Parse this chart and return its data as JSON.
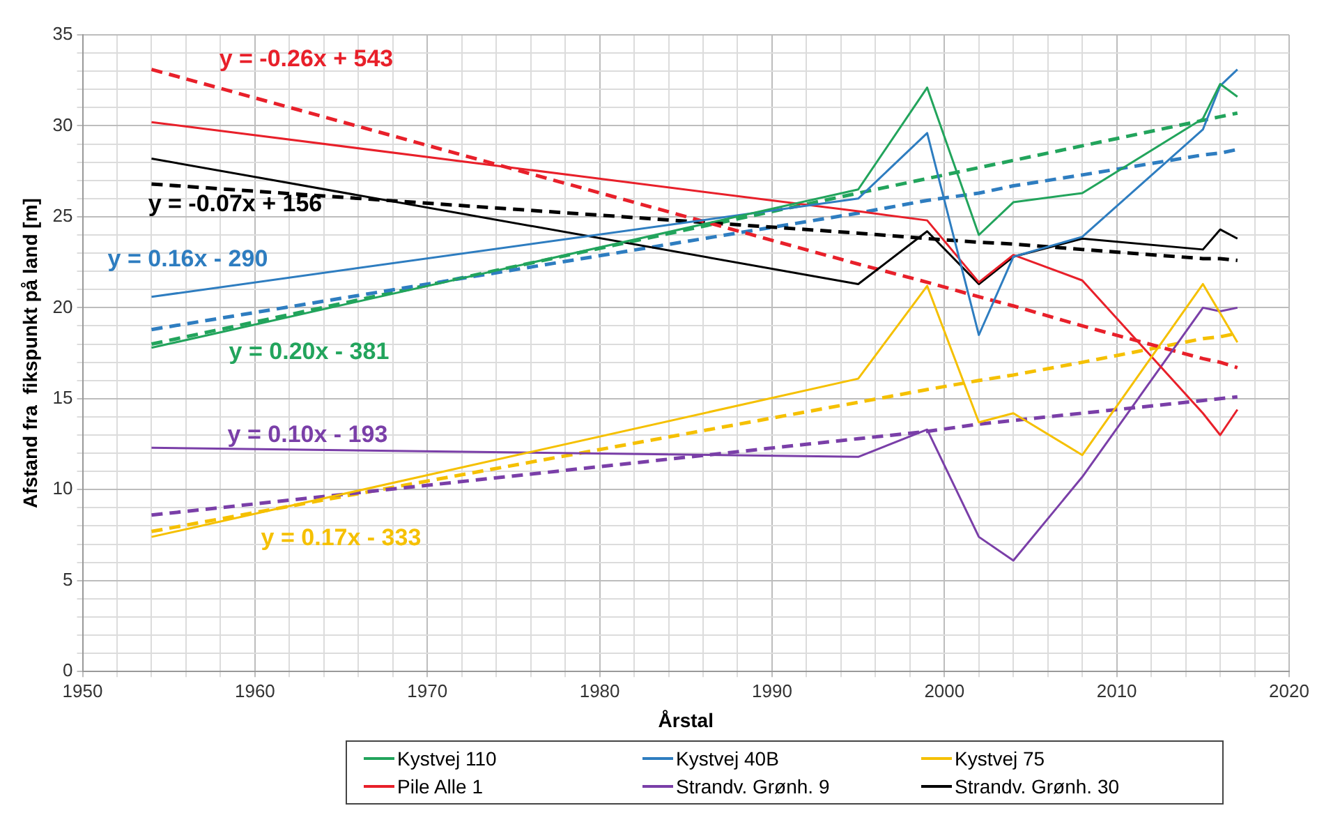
{
  "chart_data": {
    "type": "line",
    "xlabel": "Årstal",
    "ylabel": "Afstand fra  fikspunkt på land [m]",
    "x": [
      1954,
      1995,
      1999,
      2002,
      2004,
      2008,
      2015,
      2016,
      2017
    ],
    "series": [
      {
        "name": "Kystvej 110",
        "color": "#22a45c",
        "values": [
          17.8,
          26.5,
          32.1,
          24.0,
          25.8,
          26.3,
          30.4,
          32.3,
          31.6
        ]
      },
      {
        "name": "Kystvej 40B",
        "color": "#2e7dc0",
        "values": [
          20.6,
          26.0,
          29.6,
          18.5,
          22.8,
          23.9,
          29.8,
          32.2,
          33.1
        ]
      },
      {
        "name": "Kystvej 75",
        "color": "#f5c000",
        "values": [
          7.4,
          16.1,
          21.2,
          13.7,
          14.2,
          11.9,
          21.3,
          19.7,
          18.1
        ]
      },
      {
        "name": "Pile Alle 1",
        "color": "#e8202a",
        "values": [
          30.2,
          25.3,
          24.8,
          21.4,
          22.9,
          21.5,
          14.2,
          13.0,
          14.4
        ]
      },
      {
        "name": "Strandv. Grønh. 9",
        "color": "#7a3fa8",
        "values": [
          12.3,
          11.8,
          13.3,
          7.4,
          6.1,
          10.7,
          20.0,
          19.8,
          20.0
        ]
      },
      {
        "name": "Strandv. Grønh. 30",
        "color": "#000000",
        "values": [
          28.2,
          21.3,
          24.2,
          21.3,
          22.8,
          23.8,
          23.2,
          24.3,
          23.8
        ]
      },
      {
        "color": "#e8202a",
        "line_style": "dashed",
        "values": [
          33.1,
          22.4,
          21.4,
          20.6,
          20.1,
          19.0,
          17.2,
          17.0,
          16.7
        ]
      },
      {
        "color": "#000000",
        "line_style": "dashed",
        "values": [
          26.8,
          24.1,
          23.8,
          23.6,
          23.5,
          23.2,
          22.7,
          22.7,
          22.6
        ]
      },
      {
        "color": "#2e7dc0",
        "line_style": "dashed",
        "values": [
          18.8,
          25.2,
          25.9,
          26.3,
          26.7,
          27.3,
          28.4,
          28.5,
          28.7
        ]
      },
      {
        "color": "#22a45c",
        "line_style": "dashed",
        "values": [
          18.0,
          26.3,
          27.1,
          27.7,
          28.1,
          28.9,
          30.3,
          30.5,
          30.7
        ]
      },
      {
        "color": "#7a3fa8",
        "line_style": "dashed",
        "values": [
          8.6,
          12.8,
          13.2,
          13.6,
          13.8,
          14.2,
          14.9,
          15.0,
          15.1
        ]
      },
      {
        "color": "#f5c000",
        "line_style": "dashed",
        "values": [
          7.7,
          14.8,
          15.5,
          16.0,
          16.3,
          17.0,
          18.3,
          18.4,
          18.6
        ]
      }
    ],
    "annotations": [
      "y = -0.26x + 543",
      "y = -0.07x + 156",
      "y = 0.16x - 290",
      "y = 0.20x - 381",
      "y = 0.10x - 193",
      "y = 0.17x - 333"
    ],
    "xlim": [
      1950,
      2020
    ],
    "xticks": [
      1950,
      {
        "value": 1952,
        "label": null
      },
      {
        "value": 1954,
        "label": null
      },
      {
        "value": 1956,
        "label": null
      },
      {
        "value": 1958,
        "label": null
      },
      1960,
      {
        "value": 1962,
        "label": null
      },
      {
        "value": 1964,
        "label": null
      },
      {
        "value": 1966,
        "label": null
      },
      {
        "value": 1968,
        "label": null
      },
      1970,
      {
        "value": 1972,
        "label": null
      },
      {
        "value": 1974,
        "label": null
      },
      {
        "value": 1976,
        "label": null
      },
      {
        "value": 1978,
        "label": null
      },
      1980,
      {
        "value": 1982,
        "label": null
      },
      {
        "value": 1984,
        "label": null
      },
      {
        "value": 1986,
        "label": null
      },
      {
        "value": 1988,
        "label": null
      },
      1990,
      {
        "value": 1992,
        "label": null
      },
      {
        "value": 1994,
        "label": null
      },
      {
        "value": 1996,
        "label": null
      },
      {
        "value": 1998,
        "label": null
      },
      2000,
      {
        "value": 2002,
        "label": null
      },
      {
        "value": 2004,
        "label": null
      },
      {
        "value": 2006,
        "label": null
      },
      {
        "value": 2008,
        "label": null
      },
      2010,
      {
        "value": 2012,
        "label": null
      },
      {
        "value": 2014,
        "label": null
      },
      {
        "value": 2016,
        "label": null
      },
      {
        "value": 2018,
        "label": null
      },
      2020
    ],
    "ylim": [
      0,
      35
    ],
    "yticks": [
      0,
      {
        "value": 1,
        "label": null
      },
      {
        "value": 2,
        "label": null
      },
      {
        "value": 3,
        "label": null
      },
      {
        "value": 4,
        "label": null
      },
      5,
      {
        "value": 6,
        "label": null
      },
      {
        "value": 7,
        "label": null
      },
      {
        "value": 8,
        "label": null
      },
      {
        "value": 9,
        "label": null
      },
      10,
      {
        "value": 11,
        "label": null
      },
      {
        "value": 12,
        "label": null
      },
      {
        "value": 13,
        "label": null
      },
      {
        "value": 14,
        "label": null
      },
      15,
      {
        "value": 16,
        "label": null
      },
      {
        "value": 17,
        "label": null
      },
      {
        "value": 18,
        "label": null
      },
      {
        "value": 19,
        "label": null
      },
      20,
      {
        "value": 21,
        "label": null
      },
      {
        "value": 22,
        "label": null
      },
      {
        "value": 23,
        "label": null
      },
      {
        "value": 24,
        "label": null
      },
      25,
      {
        "value": 26,
        "label": null
      },
      {
        "value": 27,
        "label": null
      },
      {
        "value": 28,
        "label": null
      },
      {
        "value": 29,
        "label": null
      },
      30,
      {
        "value": 31,
        "label": null
      },
      {
        "value": 32,
        "label": null
      },
      {
        "value": 33,
        "label": null
      },
      {
        "value": 34,
        "label": null
      },
      35
    ],
    "grid": true,
    "legend": "bottom",
    "marker": "none",
    "line_style": "solid"
  }
}
